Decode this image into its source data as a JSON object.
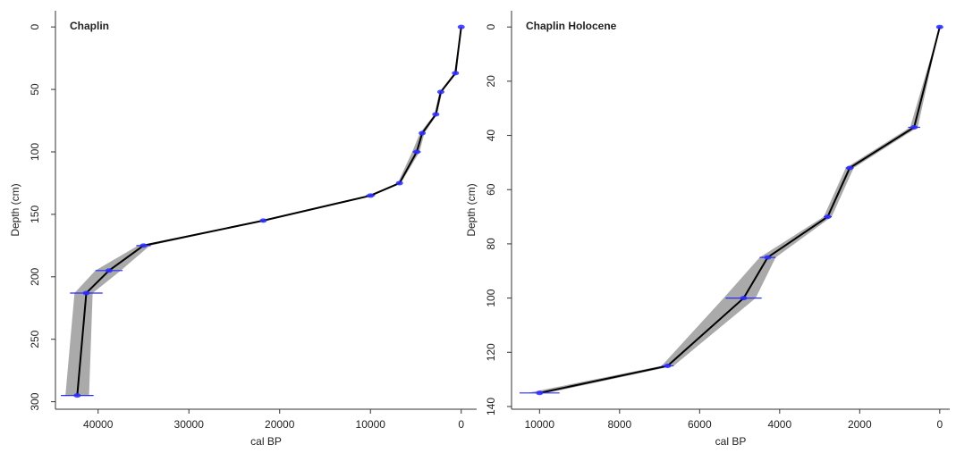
{
  "chart_data": [
    {
      "type": "line",
      "title": "Chaplin",
      "x_label": "cal BP",
      "y_label": "Depth (cm)",
      "xlim": [
        44700,
        -1700
      ],
      "ylim": [
        -13,
        306
      ],
      "xticks": [
        40000,
        30000,
        20000,
        10000,
        0
      ],
      "yticks": [
        0,
        50,
        100,
        150,
        200,
        250,
        300
      ],
      "color": "#000000",
      "band_color": "#aaaaaa",
      "date_color": "#2b2bff",
      "depth": [
        0,
        37,
        52,
        70,
        85,
        100,
        125,
        135,
        155,
        175,
        195,
        213,
        295
      ],
      "age": [
        0,
        640,
        2250,
        2800,
        4300,
        4900,
        6800,
        10000,
        21800,
        35000,
        38800,
        41300,
        42300
      ],
      "age_min": [
        0,
        500,
        2100,
        2650,
        4050,
        4600,
        6650,
        9800,
        21500,
        34300,
        37500,
        40600,
        41000
      ],
      "age_max": [
        0,
        780,
        2400,
        2950,
        4550,
        5400,
        7000,
        10300,
        22100,
        35600,
        40300,
        42600,
        43600
      ],
      "date_depth": [
        0,
        37,
        52,
        70,
        85,
        100,
        125,
        135,
        155,
        175,
        195,
        213,
        295
      ],
      "date_age": [
        0,
        640,
        2250,
        2800,
        4300,
        4900,
        6800,
        10000,
        21800,
        35000,
        38800,
        41300,
        42300
      ],
      "date_error": [
        50,
        150,
        100,
        100,
        200,
        450,
        150,
        500,
        200,
        800,
        1500,
        1800,
        1800
      ]
    },
    {
      "type": "line",
      "title": "Chaplin Holocene",
      "x_label": "cal BP",
      "y_label": "Depth (cm)",
      "xlim": [
        10700,
        -250
      ],
      "ylim": [
        -6,
        141
      ],
      "xticks": [
        10000,
        8000,
        6000,
        4000,
        2000,
        0
      ],
      "yticks": [
        0,
        20,
        40,
        60,
        80,
        100,
        120,
        140
      ],
      "color": "#000000",
      "band_color": "#aaaaaa",
      "date_color": "#2b2bff",
      "depth": [
        0,
        37,
        52,
        70,
        85,
        100,
        125,
        135
      ],
      "age": [
        0,
        640,
        2250,
        2800,
        4300,
        4900,
        6800,
        10000
      ],
      "age_min": [
        0,
        550,
        2150,
        2700,
        4100,
        4600,
        6650,
        9800
      ],
      "age_max": [
        0,
        740,
        2350,
        2900,
        4500,
        5400,
        6950,
        10300
      ],
      "date_depth": [
        0,
        37,
        52,
        70,
        85,
        100,
        125,
        135
      ],
      "date_age": [
        0,
        640,
        2250,
        2800,
        4300,
        4900,
        6800,
        10000
      ],
      "date_error": [
        50,
        150,
        100,
        100,
        200,
        450,
        150,
        500
      ]
    }
  ]
}
